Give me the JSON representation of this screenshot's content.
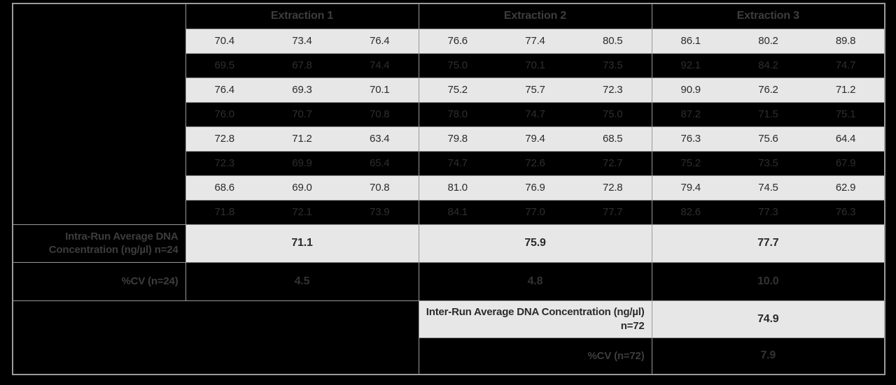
{
  "chart_data": {
    "type": "table",
    "column_groups": [
      "Extraction 1",
      "Extraction 2",
      "Extraction 3"
    ],
    "columns_per_group": 3,
    "data_rows": [
      [
        "70.4",
        "73.4",
        "76.4",
        "76.6",
        "77.4",
        "80.5",
        "86.1",
        "80.2",
        "89.8"
      ],
      [
        "69.5",
        "67.8",
        "74.4",
        "75.0",
        "70.1",
        "73.5",
        "92.1",
        "84.2",
        "74.7"
      ],
      [
        "76.4",
        "69.3",
        "70.1",
        "75.2",
        "75.7",
        "72.3",
        "90.9",
        "76.2",
        "71.2"
      ],
      [
        "76.0",
        "70.7",
        "70.8",
        "78.0",
        "74.7",
        "75.0",
        "87.2",
        "71.5",
        "75.1"
      ],
      [
        "72.8",
        "71.2",
        "63.4",
        "79.8",
        "79.4",
        "68.5",
        "76.3",
        "75.6",
        "64.4"
      ],
      [
        "72.3",
        "69.9",
        "65.4",
        "74.7",
        "72.6",
        "72.7",
        "75.2",
        "73.5",
        "67.9"
      ],
      [
        "68.6",
        "69.0",
        "70.8",
        "81.0",
        "76.9",
        "72.8",
        "79.4",
        "74.5",
        "62.9"
      ],
      [
        "71.8",
        "72.1",
        "73.9",
        "84.1",
        "77.0",
        "77.7",
        "82.6",
        "77.3",
        "76.3"
      ]
    ],
    "intra_run": {
      "label": "Intra-Run Average DNA Concentration (ng/µl) n=24",
      "values": [
        "71.1",
        "75.9",
        "77.7"
      ]
    },
    "cv_intra": {
      "label": "%CV (n=24)",
      "values": [
        "4.5",
        "4.8",
        "10.0"
      ]
    },
    "inter_run": {
      "label": "Inter-Run Average DNA Concentration (ng/µl) n=72",
      "value": "74.9"
    },
    "cv_inter": {
      "label": "%CV (n=72)",
      "value": "7.9"
    }
  },
  "colors": {
    "page_bg": "#000000",
    "row_light_bg": "#e7e7e7",
    "row_dark_bg": "#000000",
    "border": "#9a9a9a",
    "text_on_light": "#2b2b2b",
    "text_on_dark": "#3d3d3d",
    "dark_row_value_text": "#2e2e2e"
  }
}
